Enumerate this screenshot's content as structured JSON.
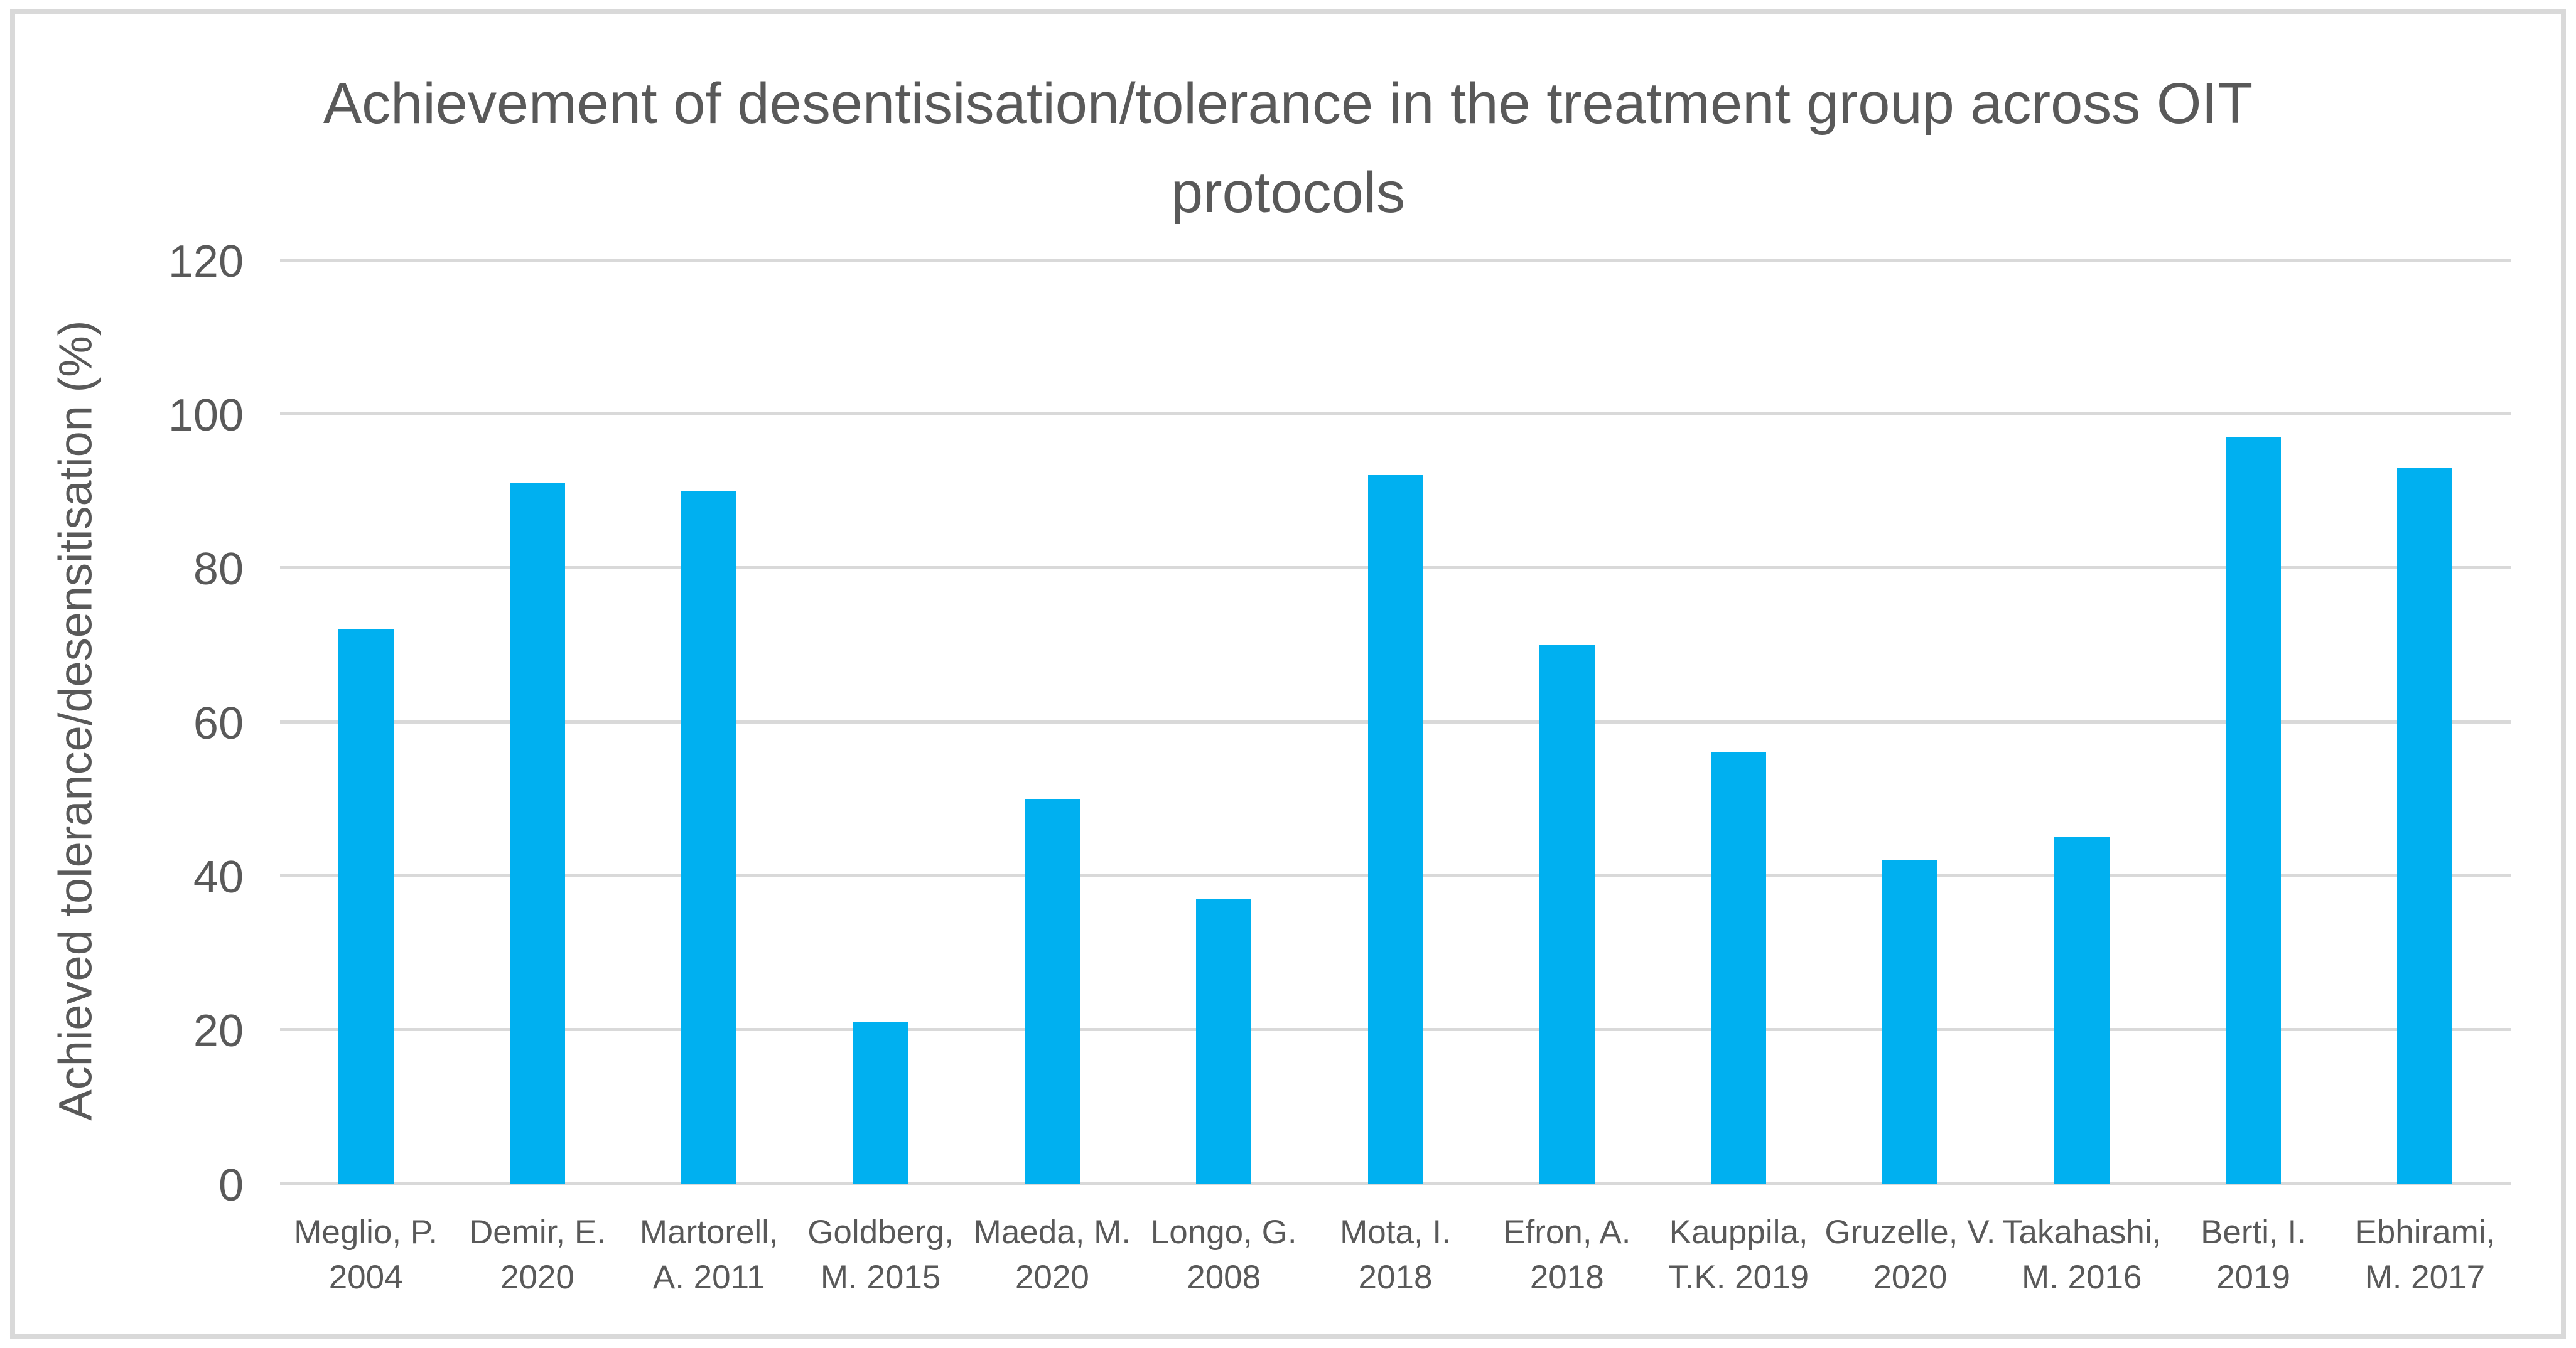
{
  "colors": {
    "bar": "#00b0f0",
    "gridline": "#d9d9d9",
    "text": "#595959",
    "frame_border": "#d9d9d9",
    "background": "#ffffff"
  },
  "chart_data": {
    "type": "bar",
    "title": "Achievement of desentisisation/tolerance in the treatment group across OIT protocols",
    "ylabel": "Achieved tolerance/desensitisation (%)",
    "xlabel": "",
    "ylim": [
      0,
      120
    ],
    "yticks": [
      0,
      20,
      40,
      60,
      80,
      100,
      120
    ],
    "grid": "horizontal",
    "legend": "none",
    "categories": [
      "Meglio, P. 2004",
      "Demir, E. 2020",
      "Martorell, A. 2011",
      "Goldberg, M. 2015",
      "Maeda, M. 2020",
      "Longo, G. 2008",
      "Mota, I. 2018",
      "Efron, A. 2018",
      "Kauppila, T.K. 2019",
      "Gruzelle, V. 2020",
      "Takahashi, M. 2016",
      "Berti, I. 2019",
      "Ebhirami, M. 2017"
    ],
    "category_label_lines": [
      [
        "Meglio, P.",
        "2004"
      ],
      [
        "Demir, E.",
        "2020"
      ],
      [
        "Martorell,",
        "A. 2011"
      ],
      [
        "Goldberg,",
        "M. 2015"
      ],
      [
        "Maeda, M.",
        "2020"
      ],
      [
        "Longo, G.",
        "2008"
      ],
      [
        "Mota, I.",
        "2018"
      ],
      [
        "Efron, A.",
        "2018"
      ],
      [
        "Kauppila,",
        "T.K. 2019"
      ],
      [
        "Gruzelle, V.",
        "2020"
      ],
      [
        "Takahashi,",
        "M. 2016"
      ],
      [
        "Berti, I.",
        "2019"
      ],
      [
        "Ebhirami,",
        "M. 2017"
      ]
    ],
    "values": [
      72,
      91,
      90,
      21,
      50,
      37,
      92,
      70,
      56,
      42,
      45,
      97,
      93
    ]
  }
}
